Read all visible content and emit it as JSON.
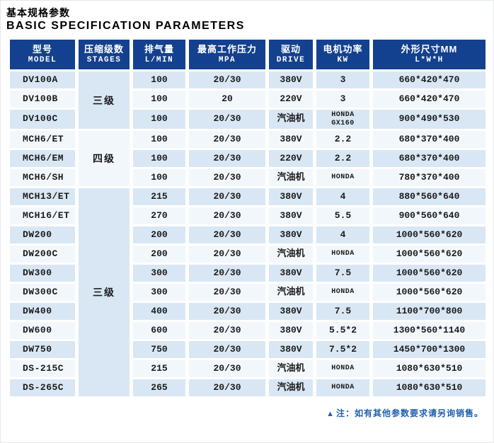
{
  "header": {
    "title_cn": "基本规格参数",
    "title_en": "BASIC SPECIFICATION PARAMETERS"
  },
  "table": {
    "columns": [
      {
        "key": "model",
        "cn": "型号",
        "en": "MODEL"
      },
      {
        "key": "stages",
        "cn": "压缩级数",
        "en": "STAGES"
      },
      {
        "key": "displacement",
        "cn": "排气量",
        "en": "L/MIN"
      },
      {
        "key": "pressure",
        "cn": "最高工作压力",
        "en": "MPA"
      },
      {
        "key": "drive",
        "cn": "驱动",
        "en": "DRIVE"
      },
      {
        "key": "power",
        "cn": "电机功率",
        "en": "KW"
      },
      {
        "key": "dimensions",
        "cn": "外形尺寸MM",
        "en": "L*W*H"
      }
    ],
    "rows": [
      {
        "model": "DV100A",
        "stage": {
          "label": "三级",
          "span": 3
        },
        "lmin": "100",
        "mpa": "20/30",
        "drive": "380V",
        "kw": "3",
        "dims": "660*420*470"
      },
      {
        "model": "DV100B",
        "lmin": "100",
        "mpa": "20",
        "drive": "220V",
        "kw": "3",
        "dims": "660*420*470"
      },
      {
        "model": "DV100C",
        "lmin": "100",
        "mpa": "20/30",
        "drive": "汽油机",
        "kw": "HONDA\nGX160",
        "dims": "900*490*530"
      },
      {
        "model": "MCH6/ET",
        "stage": {
          "label": "四级",
          "span": 3
        },
        "lmin": "100",
        "mpa": "20/30",
        "drive": "380V",
        "kw": "2.2",
        "dims": "680*370*400"
      },
      {
        "model": "MCH6/EM",
        "lmin": "100",
        "mpa": "20/30",
        "drive": "220V",
        "kw": "2.2",
        "dims": "680*370*400"
      },
      {
        "model": "MCH6/SH",
        "lmin": "100",
        "mpa": "20/30",
        "drive": "汽油机",
        "kw": "HONDA",
        "dims": "780*370*400"
      },
      {
        "model": "MCH13/ET",
        "stage": {
          "label": "三级",
          "span": 11
        },
        "lmin": "215",
        "mpa": "20/30",
        "drive": "380V",
        "kw": "4",
        "dims": "880*560*640"
      },
      {
        "model": "MCH16/ET",
        "lmin": "270",
        "mpa": "20/30",
        "drive": "380V",
        "kw": "5.5",
        "dims": "900*560*640"
      },
      {
        "model": "DW200",
        "lmin": "200",
        "mpa": "20/30",
        "drive": "380V",
        "kw": "4",
        "dims": "1000*560*620"
      },
      {
        "model": "DW200C",
        "lmin": "200",
        "mpa": "20/30",
        "drive": "汽油机",
        "kw": "HONDA",
        "dims": "1000*560*620"
      },
      {
        "model": "DW300",
        "lmin": "300",
        "mpa": "20/30",
        "drive": "380V",
        "kw": "7.5",
        "dims": "1000*560*620"
      },
      {
        "model": "DW300C",
        "lmin": "300",
        "mpa": "20/30",
        "drive": "汽油机",
        "kw": "HONDA",
        "dims": "1000*560*620"
      },
      {
        "model": "DW400",
        "lmin": "400",
        "mpa": "20/30",
        "drive": "380V",
        "kw": "7.5",
        "dims": "1100*700*800"
      },
      {
        "model": "DW600",
        "lmin": "600",
        "mpa": "20/30",
        "drive": "380V",
        "kw": "5.5*2",
        "dims": "1300*560*1140"
      },
      {
        "model": "DW750",
        "lmin": "750",
        "mpa": "20/30",
        "drive": "380V",
        "kw": "7.5*2",
        "dims": "1450*700*1300"
      },
      {
        "model": "DS-215C",
        "lmin": "215",
        "mpa": "20/30",
        "drive": "汽油机",
        "kw": "HONDA",
        "dims": "1080*630*510"
      },
      {
        "model": "DS-265C",
        "lmin": "265",
        "mpa": "20/30",
        "drive": "汽油机",
        "kw": "HONDA",
        "dims": "1080*630*510"
      }
    ]
  },
  "footer": {
    "marker": "▲",
    "note": "注：如有其他参数要求请另询销售。"
  },
  "colors": {
    "header_bg": "#14418f",
    "row_light": "#d9e7f4",
    "row_lighter": "#f2f7fc",
    "note_text": "#1f5fae"
  }
}
